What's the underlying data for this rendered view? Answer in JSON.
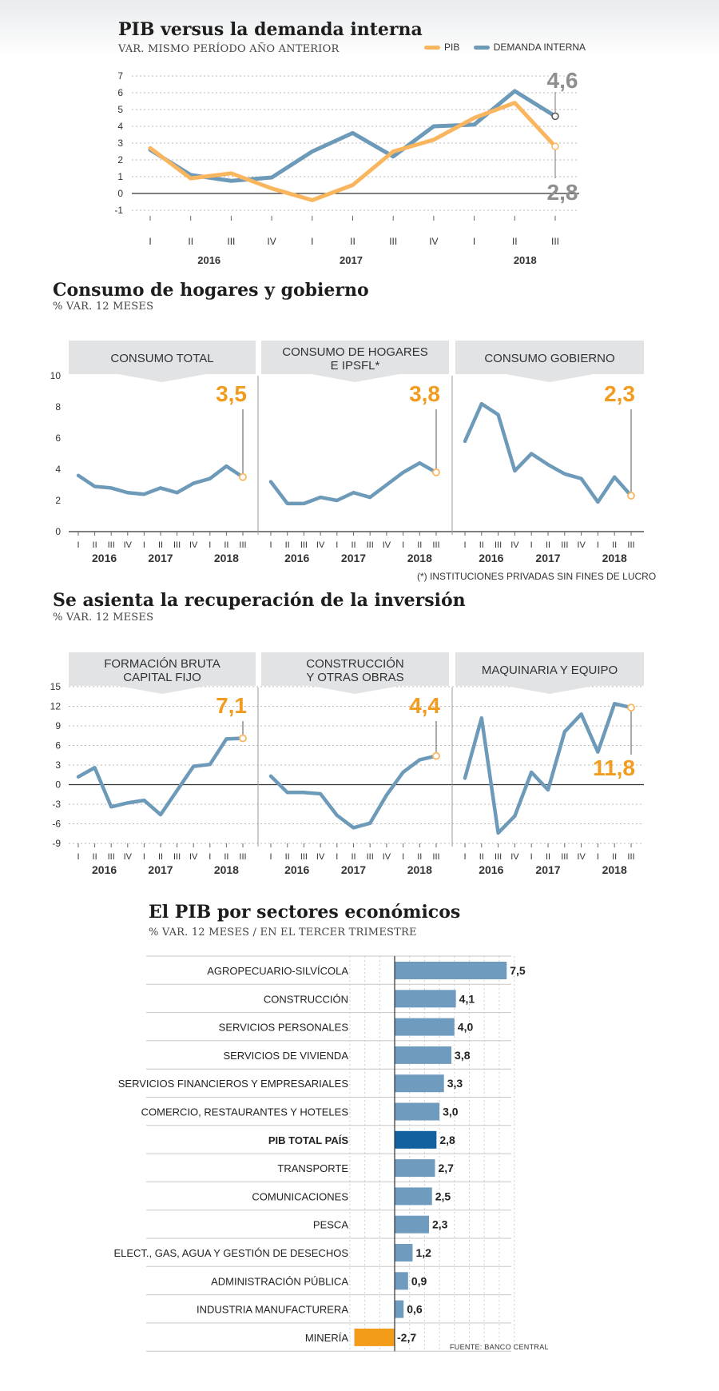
{
  "colors": {
    "pib": "#f9b65f",
    "demanda": "#6d9ab9",
    "callout_orange": "#f29c1f",
    "callout_gray": "#8e8e8e",
    "bar": "#6f9bbe",
    "bar_total": "#13609e",
    "bar_negative": "#f39c1a",
    "panel_header": "#e1e3e5"
  },
  "section1": {
    "title": "PIB versus la demanda interna",
    "subtitle": "VAR. MISMO PERÍODO AÑO ANTERIOR",
    "legend": [
      "PIB",
      "DEMANDA INTERNA"
    ]
  },
  "section2": {
    "title": "Consumo de hogares y gobierno",
    "subtitle": "% VAR. 12 MESES",
    "panels": [
      "CONSUMO TOTAL",
      "CONSUMO DE HOGARES\nE IPSFL*",
      "CONSUMO GOBIERNO"
    ],
    "footnote": "(*) INSTITUCIONES PRIVADAS SIN FINES DE LUCRO"
  },
  "section3": {
    "title": "Se asienta la recuperación de la inversión",
    "subtitle": "% VAR. 12 MESES",
    "panels": [
      "FORMACIÓN BRUTA\nCAPITAL FIJO",
      "CONSTRUCCIÓN\nY OTRAS OBRAS",
      "MAQUINARIA Y EQUIPO"
    ]
  },
  "section4": {
    "title": "El PIB por sectores económicos",
    "subtitle": "% VAR. 12 MESES / EN EL TERCER TRIMESTRE",
    "source": "FUENTE: BANCO CENTRAL"
  },
  "chart_data": [
    {
      "type": "line",
      "title": "PIB versus la demanda interna",
      "subtitle": "VAR. MISMO PERÍODO AÑO ANTERIOR",
      "x": [
        "I",
        "II",
        "III",
        "IV",
        "I",
        "II",
        "III",
        "IV",
        "I",
        "II",
        "III"
      ],
      "year_labels": [
        "2016",
        "2017",
        "2018"
      ],
      "ylim": [
        -1,
        7
      ],
      "yticks": [
        -1,
        0,
        1,
        2,
        3,
        4,
        5,
        6,
        7
      ],
      "grid": true,
      "legend_position": "top-right",
      "series": [
        {
          "name": "PIB",
          "values": [
            2.7,
            0.9,
            1.2,
            0.3,
            -0.4,
            0.5,
            2.5,
            3.2,
            4.5,
            5.4,
            2.8
          ]
        },
        {
          "name": "DEMANDA INTERNA",
          "values": [
            2.6,
            1.1,
            0.75,
            0.95,
            2.5,
            3.6,
            2.2,
            4.0,
            4.1,
            6.1,
            4.6
          ]
        }
      ],
      "annotations": [
        "4,6",
        "2,8"
      ]
    },
    {
      "type": "line",
      "title": "Consumo de hogares y gobierno",
      "subtitle": "% VAR. 12 MESES",
      "x": [
        "I",
        "II",
        "III",
        "IV",
        "I",
        "II",
        "III",
        "IV",
        "I",
        "II",
        "III"
      ],
      "year_labels": [
        "2016",
        "2017",
        "2018"
      ],
      "ylim": [
        0,
        10
      ],
      "yticks": [
        0,
        2,
        4,
        6,
        8,
        10
      ],
      "grid": false,
      "series": [
        {
          "name": "CONSUMO TOTAL",
          "values": [
            3.6,
            2.9,
            2.8,
            2.5,
            2.4,
            2.8,
            2.5,
            3.1,
            3.4,
            4.2,
            3.5
          ],
          "label": "3,5"
        },
        {
          "name": "CONSUMO DE HOGARES E IPSFL*",
          "values": [
            3.2,
            1.8,
            1.8,
            2.2,
            2.0,
            2.5,
            2.2,
            3.0,
            3.8,
            4.4,
            3.8
          ],
          "label": "3,8"
        },
        {
          "name": "CONSUMO GOBIERNO",
          "values": [
            5.8,
            8.2,
            7.5,
            3.9,
            5.0,
            4.3,
            3.7,
            3.4,
            1.9,
            3.5,
            2.3
          ],
          "label": "2,3"
        }
      ]
    },
    {
      "type": "line",
      "title": "Se asienta la recuperación de la inversión",
      "subtitle": "% VAR. 12 MESES",
      "x": [
        "I",
        "II",
        "III",
        "IV",
        "I",
        "II",
        "III",
        "IV",
        "I",
        "II",
        "III"
      ],
      "year_labels": [
        "2016",
        "2017",
        "2018"
      ],
      "ylim": [
        -9,
        15
      ],
      "yticks": [
        -9,
        -6,
        -3,
        0,
        3,
        6,
        9,
        12,
        15
      ],
      "grid": true,
      "series": [
        {
          "name": "FORMACIÓN BRUTA CAPITAL FIJO",
          "values": [
            1.2,
            2.6,
            -3.4,
            -2.8,
            -2.4,
            -4.6,
            -0.9,
            2.8,
            3.1,
            7.0,
            7.1
          ],
          "label": "7,1"
        },
        {
          "name": "CONSTRUCCIÓN Y OTRAS OBRAS",
          "values": [
            1.3,
            -1.2,
            -1.2,
            -1.4,
            -4.7,
            -6.6,
            -5.9,
            -1.6,
            1.9,
            3.8,
            4.4
          ],
          "label": "4,4"
        },
        {
          "name": "MAQUINARIA Y EQUIPO",
          "values": [
            1.0,
            10.2,
            -7.4,
            -4.8,
            1.9,
            -0.8,
            8.1,
            10.8,
            5.0,
            12.4,
            11.8
          ],
          "label": "11,8"
        }
      ]
    },
    {
      "type": "bar",
      "orientation": "horizontal",
      "title": "El PIB por sectores económicos",
      "subtitle": "% VAR. 12 MESES / EN EL TERCER TRIMESTRE",
      "categories": [
        "AGROPECUARIO-SILVÍCOLA",
        "CONSTRUCCIÓN",
        "SERVICIOS PERSONALES",
        "SERVICIOS DE VIVIENDA",
        "SERVICIOS FINANCIEROS Y EMPRESARIALES",
        "COMERCIO, RESTAURANTES Y HOTELES",
        "PIB TOTAL PAÍS",
        "TRANSPORTE",
        "COMUNICACIONES",
        "PESCA",
        "ELECT., GAS, AGUA Y GESTIÓN DE DESECHOS",
        "ADMINISTRACIÓN PÚBLICA",
        "INDUSTRIA MANUFACTURERA",
        "MINERÍA"
      ],
      "values": [
        7.5,
        4.1,
        4.0,
        3.8,
        3.3,
        3.0,
        2.8,
        2.7,
        2.5,
        2.3,
        1.2,
        0.9,
        0.6,
        -2.7
      ],
      "value_labels": [
        "7,5",
        "4,1",
        "4,0",
        "3,8",
        "3,3",
        "3,0",
        "2,8",
        "2,7",
        "2,5",
        "2,3",
        "1,2",
        "0,9",
        "0,6",
        "-2,7"
      ],
      "highlight": "PIB TOTAL PAÍS"
    }
  ]
}
